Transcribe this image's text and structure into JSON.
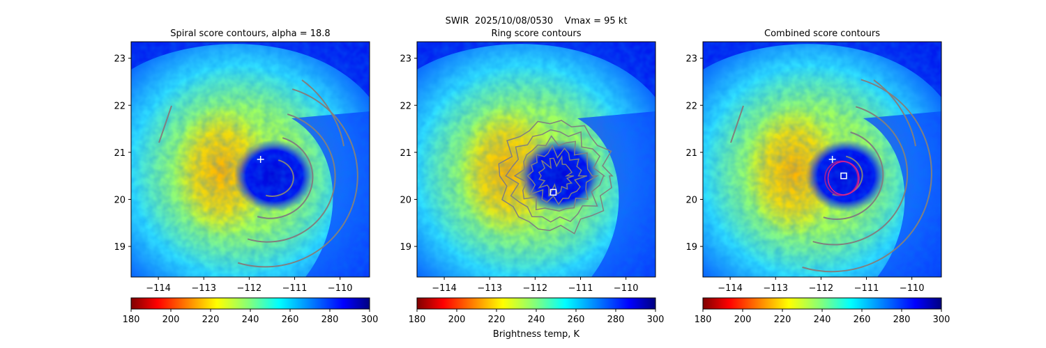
{
  "figure": {
    "suptitle": "SWIR  2025/10/08/0530    Vmax = 95 kt",
    "colorbar_label": "Brightness temp, K",
    "colormap": "jet",
    "contour_color": "#808080",
    "marker_color": "#ffffff",
    "ring_colors": [
      "#8b1fa0",
      "#e0208c"
    ]
  },
  "chart_data": [
    {
      "type": "heatmap",
      "title": "Spiral score contours, alpha = 18.8",
      "xlim": [
        -114.6,
        -109.35
      ],
      "ylim": [
        18.35,
        23.35
      ],
      "xticks": [
        -114,
        -113,
        -112,
        -111,
        -110
      ],
      "yticks": [
        19,
        20,
        21,
        22,
        23
      ],
      "xticklabels": [
        "−114",
        "−113",
        "−112",
        "−111",
        "−110"
      ],
      "yticklabels": [
        "19",
        "20",
        "21",
        "22",
        "23"
      ],
      "colorbar": {
        "min": 180,
        "max": 300,
        "ticks": [
          180,
          200,
          220,
          240,
          260,
          280,
          300
        ],
        "ticklabels": [
          "180",
          "200",
          "220",
          "240",
          "260",
          "280",
          "300"
        ]
      },
      "markers": [
        {
          "shape": "plus",
          "lon": -111.75,
          "lat": 20.85
        }
      ],
      "contours": "spiral"
    },
    {
      "type": "heatmap",
      "title": "Ring score contours",
      "xlim": [
        -114.6,
        -109.35
      ],
      "ylim": [
        18.35,
        23.35
      ],
      "xticks": [
        -114,
        -113,
        -112,
        -111,
        -110
      ],
      "yticks": [
        19,
        20,
        21,
        22,
        23
      ],
      "xticklabels": [
        "−114",
        "−113",
        "−112",
        "−111",
        "−110"
      ],
      "yticklabels": [
        "19",
        "20",
        "21",
        "22",
        "23"
      ],
      "colorbar": {
        "min": 180,
        "max": 300,
        "ticks": [
          180,
          200,
          220,
          240,
          260,
          280,
          300
        ],
        "ticklabels": [
          "180",
          "200",
          "220",
          "240",
          "260",
          "280",
          "300"
        ]
      },
      "markers": [
        {
          "shape": "square",
          "lon": -111.6,
          "lat": 20.15
        }
      ],
      "contours": "ring"
    },
    {
      "type": "heatmap",
      "title": "Combined score contours",
      "xlim": [
        -114.6,
        -109.35
      ],
      "ylim": [
        18.35,
        23.35
      ],
      "xticks": [
        -114,
        -113,
        -112,
        -111,
        -110
      ],
      "yticks": [
        19,
        20,
        21,
        22,
        23
      ],
      "xticklabels": [
        "−114",
        "−113",
        "−112",
        "−111",
        "−110"
      ],
      "yticklabels": [
        "19",
        "20",
        "21",
        "22",
        "23"
      ],
      "colorbar": {
        "min": 180,
        "max": 300,
        "ticks": [
          180,
          200,
          220,
          240,
          260,
          280,
          300
        ],
        "ticklabels": [
          "180",
          "200",
          "220",
          "240",
          "260",
          "280",
          "300"
        ]
      },
      "markers": [
        {
          "shape": "plus",
          "lon": -111.75,
          "lat": 20.85
        },
        {
          "shape": "square",
          "lon": -111.5,
          "lat": 20.5
        }
      ],
      "rings": [
        {
          "lon": -111.55,
          "lat": 20.45,
          "radius_deg": 0.55
        }
      ],
      "contours": "combined"
    }
  ]
}
